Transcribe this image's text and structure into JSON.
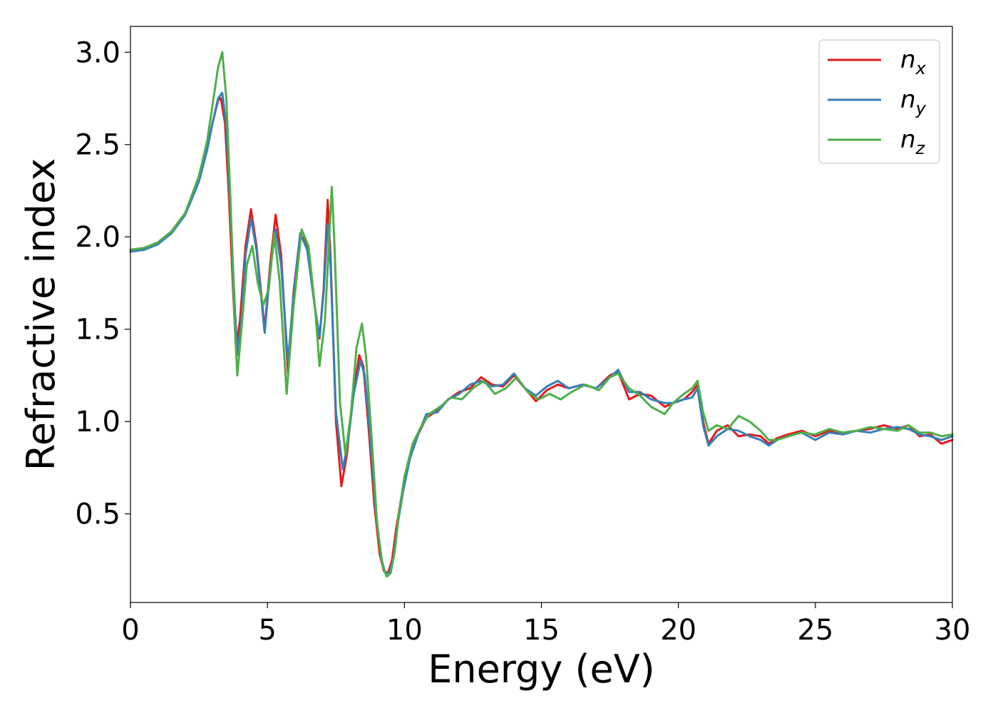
{
  "chart_data": {
    "type": "line",
    "xlabel": "Energy (eV)",
    "ylabel": "Refractive index",
    "xlim": [
      0,
      30
    ],
    "ylim": [
      0.02,
      3.14
    ],
    "xticks": [
      "0",
      "5",
      "10",
      "15",
      "20",
      "25",
      "30"
    ],
    "yticks": [
      "0.5",
      "1.0",
      "1.5",
      "2.0",
      "2.5",
      "3.0"
    ],
    "grid": false,
    "legend_position": "top-right",
    "series": [
      {
        "name": "n",
        "subscript": "x",
        "color": "#e41a1c",
        "x": [
          0,
          0.5,
          1.0,
          1.5,
          2.0,
          2.5,
          2.8,
          3.0,
          3.2,
          3.3,
          3.45,
          3.6,
          3.75,
          3.85,
          4.0,
          4.2,
          4.4,
          4.6,
          4.9,
          5.1,
          5.3,
          5.5,
          5.75,
          5.95,
          6.2,
          6.45,
          6.75,
          6.9,
          7.05,
          7.2,
          7.3,
          7.5,
          7.7,
          7.9,
          8.1,
          8.35,
          8.5,
          8.7,
          8.9,
          9.1,
          9.25,
          9.4,
          9.55,
          9.7,
          9.9,
          10.2,
          10.5,
          10.8,
          11.2,
          11.6,
          12.0,
          12.4,
          12.8,
          13.2,
          13.6,
          14.0,
          14.4,
          14.8,
          15.2,
          15.6,
          16.0,
          16.5,
          17.0,
          17.5,
          17.8,
          18.2,
          18.6,
          19.0,
          19.5,
          19.8,
          20.2,
          20.5,
          20.7,
          20.9,
          21.1,
          21.4,
          21.8,
          22.2,
          22.6,
          23.0,
          23.3,
          23.6,
          24.0,
          24.5,
          25.0,
          25.5,
          26.0,
          26.5,
          27.0,
          27.5,
          28.0,
          28.4,
          28.8,
          29.2,
          29.6,
          30.0
        ],
        "y": [
          1.93,
          1.94,
          1.97,
          2.03,
          2.13,
          2.31,
          2.48,
          2.62,
          2.74,
          2.75,
          2.62,
          2.2,
          1.7,
          1.4,
          1.55,
          1.95,
          2.15,
          1.95,
          1.5,
          1.85,
          2.12,
          1.9,
          1.26,
          1.7,
          2.02,
          1.95,
          1.6,
          1.45,
          1.72,
          2.2,
          1.9,
          1.0,
          0.65,
          0.82,
          1.12,
          1.36,
          1.3,
          0.95,
          0.55,
          0.28,
          0.19,
          0.18,
          0.25,
          0.42,
          0.6,
          0.8,
          0.93,
          1.02,
          1.06,
          1.12,
          1.16,
          1.18,
          1.24,
          1.2,
          1.19,
          1.25,
          1.18,
          1.11,
          1.17,
          1.2,
          1.18,
          1.2,
          1.18,
          1.25,
          1.27,
          1.12,
          1.15,
          1.14,
          1.08,
          1.1,
          1.12,
          1.16,
          1.2,
          1.0,
          0.88,
          0.95,
          0.98,
          0.92,
          0.93,
          0.92,
          0.88,
          0.91,
          0.93,
          0.95,
          0.92,
          0.95,
          0.94,
          0.95,
          0.96,
          0.98,
          0.96,
          0.98,
          0.92,
          0.93,
          0.88,
          0.9
        ]
      },
      {
        "name": "n",
        "subscript": "y",
        "color": "#377eb8",
        "x": [
          0,
          0.5,
          1.0,
          1.5,
          2.0,
          2.5,
          2.8,
          3.0,
          3.2,
          3.35,
          3.5,
          3.65,
          3.8,
          3.9,
          4.05,
          4.2,
          4.4,
          4.6,
          4.9,
          5.1,
          5.3,
          5.5,
          5.75,
          5.95,
          6.2,
          6.45,
          6.75,
          6.9,
          7.05,
          7.2,
          7.3,
          7.5,
          7.75,
          7.95,
          8.15,
          8.4,
          8.55,
          8.75,
          8.95,
          9.15,
          9.3,
          9.45,
          9.6,
          9.75,
          9.95,
          10.2,
          10.5,
          10.8,
          11.2,
          11.6,
          12.0,
          12.4,
          12.8,
          13.2,
          13.6,
          14.0,
          14.4,
          14.8,
          15.2,
          15.6,
          16.0,
          16.5,
          17.0,
          17.5,
          17.8,
          18.2,
          18.6,
          19.0,
          19.5,
          19.8,
          20.2,
          20.5,
          20.7,
          20.9,
          21.1,
          21.4,
          21.8,
          22.2,
          22.6,
          23.0,
          23.3,
          23.6,
          24.0,
          24.5,
          25.0,
          25.5,
          26.0,
          26.5,
          27.0,
          27.5,
          28.0,
          28.4,
          28.8,
          29.2,
          29.6,
          30.0
        ],
        "y": [
          1.92,
          1.93,
          1.96,
          2.02,
          2.12,
          2.3,
          2.47,
          2.62,
          2.75,
          2.78,
          2.6,
          2.15,
          1.65,
          1.36,
          1.55,
          1.9,
          2.1,
          1.93,
          1.48,
          1.82,
          2.04,
          1.85,
          1.32,
          1.68,
          2.02,
          1.93,
          1.6,
          1.46,
          1.7,
          2.07,
          1.85,
          1.05,
          0.74,
          0.9,
          1.15,
          1.33,
          1.25,
          0.92,
          0.52,
          0.26,
          0.18,
          0.18,
          0.26,
          0.44,
          0.62,
          0.8,
          0.93,
          1.04,
          1.05,
          1.12,
          1.15,
          1.2,
          1.22,
          1.19,
          1.2,
          1.26,
          1.18,
          1.14,
          1.19,
          1.22,
          1.18,
          1.2,
          1.18,
          1.24,
          1.28,
          1.16,
          1.16,
          1.12,
          1.1,
          1.1,
          1.12,
          1.13,
          1.18,
          0.98,
          0.87,
          0.92,
          0.96,
          0.95,
          0.92,
          0.9,
          0.87,
          0.9,
          0.92,
          0.94,
          0.9,
          0.94,
          0.93,
          0.95,
          0.94,
          0.96,
          0.97,
          0.96,
          0.93,
          0.92,
          0.9,
          0.92
        ]
      },
      {
        "name": "n",
        "subscript": "z",
        "color": "#4daf4a",
        "x": [
          0,
          0.5,
          1.0,
          1.5,
          2.0,
          2.5,
          2.8,
          3.0,
          3.2,
          3.35,
          3.5,
          3.65,
          3.8,
          3.9,
          4.05,
          4.25,
          4.45,
          4.65,
          4.85,
          5.05,
          5.25,
          5.45,
          5.7,
          5.95,
          6.25,
          6.5,
          6.75,
          6.9,
          7.1,
          7.35,
          7.45,
          7.65,
          7.85,
          8.05,
          8.25,
          8.45,
          8.6,
          8.8,
          9.0,
          9.2,
          9.35,
          9.5,
          9.65,
          9.8,
          10.0,
          10.3,
          10.6,
          10.9,
          11.3,
          11.7,
          12.1,
          12.5,
          12.9,
          13.3,
          13.7,
          14.1,
          14.5,
          14.9,
          15.3,
          15.7,
          16.1,
          16.6,
          17.1,
          17.5,
          17.8,
          18.2,
          18.6,
          19.0,
          19.5,
          19.8,
          20.2,
          20.5,
          20.7,
          20.9,
          21.1,
          21.4,
          21.8,
          22.2,
          22.6,
          23.0,
          23.3,
          23.6,
          24.0,
          24.5,
          25.0,
          25.5,
          26.0,
          26.5,
          27.0,
          27.5,
          28.0,
          28.4,
          28.8,
          29.2,
          29.6,
          30.0
        ],
        "y": [
          1.93,
          1.94,
          1.97,
          2.03,
          2.13,
          2.33,
          2.52,
          2.72,
          2.92,
          3.0,
          2.75,
          2.2,
          1.55,
          1.25,
          1.5,
          1.85,
          1.95,
          1.75,
          1.63,
          1.72,
          2.02,
          1.75,
          1.15,
          1.62,
          2.04,
          1.95,
          1.6,
          1.3,
          1.55,
          2.27,
          1.95,
          1.1,
          0.82,
          1.05,
          1.4,
          1.53,
          1.35,
          0.92,
          0.45,
          0.22,
          0.16,
          0.18,
          0.3,
          0.5,
          0.7,
          0.88,
          0.97,
          1.04,
          1.08,
          1.13,
          1.12,
          1.18,
          1.22,
          1.15,
          1.18,
          1.24,
          1.16,
          1.12,
          1.15,
          1.12,
          1.16,
          1.2,
          1.17,
          1.24,
          1.26,
          1.18,
          1.14,
          1.08,
          1.04,
          1.1,
          1.15,
          1.18,
          1.22,
          1.05,
          0.95,
          0.98,
          0.96,
          1.03,
          1.0,
          0.95,
          0.9,
          0.9,
          0.92,
          0.94,
          0.93,
          0.96,
          0.94,
          0.95,
          0.97,
          0.96,
          0.95,
          0.98,
          0.94,
          0.94,
          0.92,
          0.93
        ]
      }
    ]
  }
}
